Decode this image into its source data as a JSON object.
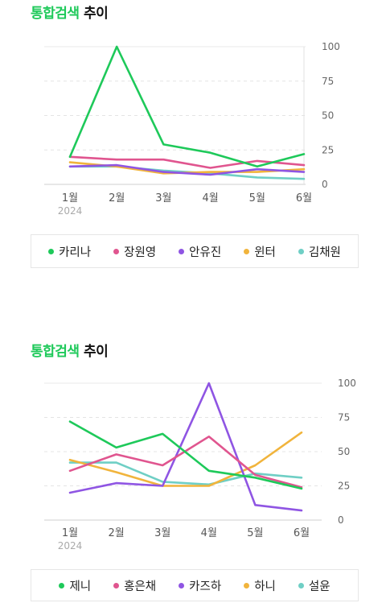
{
  "charts": [
    {
      "title_accent": "통합검색",
      "title_rest": "추이",
      "legend": [
        "카리나",
        "장원영",
        "안유진",
        "윈터",
        "김채원"
      ]
    },
    {
      "title_accent": "통합검색",
      "title_rest": "추이",
      "legend": [
        "제니",
        "홍은채",
        "카즈하",
        "하니",
        "설윤"
      ]
    }
  ],
  "colors": {
    "green": "#1ec95a",
    "pink": "#e0558f",
    "purple": "#8f55e3",
    "orange": "#f1b43c",
    "teal": "#6fcfc5"
  },
  "chart_data": [
    {
      "type": "line",
      "categories": [
        "1월",
        "2월",
        "3월",
        "4월",
        "5월",
        "6월"
      ],
      "year_label": "2024",
      "yticks": [
        0,
        25,
        50,
        75,
        100
      ],
      "ylim": [
        0,
        100
      ],
      "grid": true,
      "legend_position": "bottom",
      "series": [
        {
          "name": "카리나",
          "color": "#1ec95a",
          "values": [
            20,
            100,
            29,
            23,
            13,
            22
          ]
        },
        {
          "name": "장원영",
          "color": "#e0558f",
          "values": [
            20,
            18,
            18,
            12,
            17,
            14
          ]
        },
        {
          "name": "안유진",
          "color": "#8f55e3",
          "values": [
            13,
            14,
            9,
            7,
            11,
            9
          ]
        },
        {
          "name": "윈터",
          "color": "#f1b43c",
          "values": [
            16,
            13,
            8,
            9,
            9,
            11
          ]
        },
        {
          "name": "김채원",
          "color": "#6fcfc5",
          "values": [
            13,
            13,
            10,
            8,
            5,
            4
          ]
        }
      ]
    },
    {
      "type": "line",
      "categories": [
        "1월",
        "2월",
        "3월",
        "4월",
        "5월",
        "6월"
      ],
      "year_label": "2024",
      "yticks": [
        0,
        25,
        50,
        75,
        100
      ],
      "ylim": [
        0,
        100
      ],
      "grid": true,
      "legend_position": "bottom",
      "series": [
        {
          "name": "제니",
          "color": "#1ec95a",
          "values": [
            72,
            53,
            63,
            36,
            31,
            23
          ]
        },
        {
          "name": "홍은채",
          "color": "#e0558f",
          "values": [
            36,
            48,
            40,
            61,
            33,
            24
          ]
        },
        {
          "name": "카즈하",
          "color": "#8f55e3",
          "values": [
            20,
            27,
            25,
            100,
            11,
            7
          ]
        },
        {
          "name": "하니",
          "color": "#f1b43c",
          "values": [
            44,
            35,
            25,
            25,
            40,
            64
          ]
        },
        {
          "name": "설윤",
          "color": "#6fcfc5",
          "values": [
            42,
            42,
            28,
            26,
            34,
            31
          ]
        }
      ]
    }
  ]
}
